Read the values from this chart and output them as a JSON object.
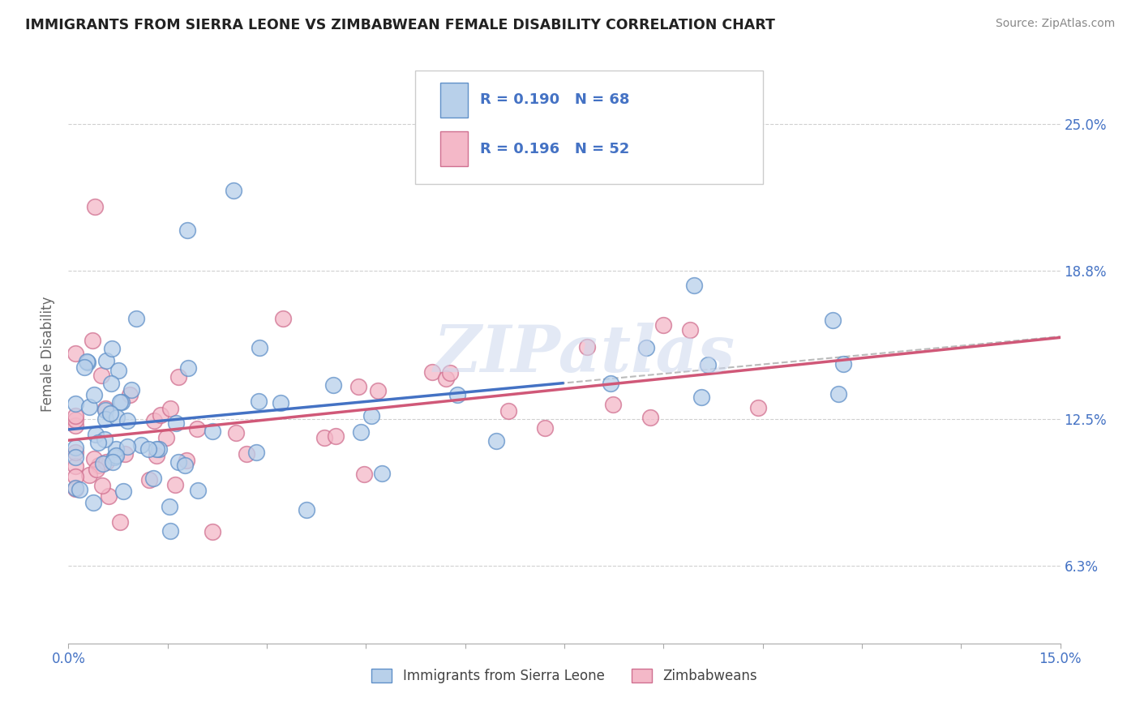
{
  "title": "IMMIGRANTS FROM SIERRA LEONE VS ZIMBABWEAN FEMALE DISABILITY CORRELATION CHART",
  "source": "Source: ZipAtlas.com",
  "ylabel": "Female Disability",
  "yticks": [
    "6.3%",
    "12.5%",
    "18.8%",
    "25.0%"
  ],
  "ytick_vals": [
    0.063,
    0.125,
    0.188,
    0.25
  ],
  "xrange": [
    0.0,
    0.15
  ],
  "yrange": [
    0.03,
    0.275
  ],
  "series1_name": "Immigrants from Sierra Leone",
  "series1_fill": "#b8d0ea",
  "series1_edge": "#6090c8",
  "series1_line_color": "#4472c4",
  "series1_R": "0.190",
  "series1_N": "68",
  "series2_name": "Zimbabweans",
  "series2_fill": "#f4b8c8",
  "series2_edge": "#d07090",
  "series2_line_color": "#d05878",
  "series2_R": "0.196",
  "series2_N": "52",
  "dash_color": "#aaaaaa",
  "watermark": "ZIPatlas",
  "background_color": "#ffffff",
  "grid_color": "#d0d0d0"
}
